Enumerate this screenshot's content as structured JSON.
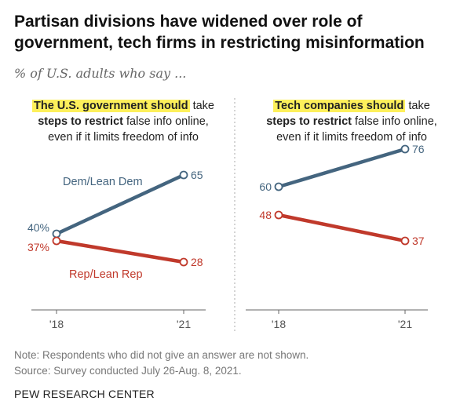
{
  "title": "Partisan divisions have widened over role of government, tech firms in restricting misinformation",
  "subtitle": "% of U.S. adults who say ...",
  "colors": {
    "dem": "#44657f",
    "rep": "#c0392b",
    "highlight": "#fdf05b",
    "axis": "#666666",
    "divider": "#aaaaaa"
  },
  "chart_data": [
    {
      "type": "line",
      "heading": {
        "highlight": "The U.S. government should",
        "rest1": " take",
        "bold2": "steps to restrict",
        "rest2": " false info online,",
        "line3": "even if it limits freedom of info"
      },
      "x": [
        "'18",
        "'21"
      ],
      "series": [
        {
          "name": "Dem/Lean Dem",
          "key": "dem",
          "values": [
            40,
            65
          ],
          "labels": [
            "40%",
            "65"
          ]
        },
        {
          "name": "Rep/Lean Rep",
          "key": "rep",
          "values": [
            37,
            28
          ],
          "labels": [
            "37%",
            "28"
          ]
        }
      ],
      "ylim": [
        0,
        100
      ]
    },
    {
      "type": "line",
      "heading": {
        "highlight": "Tech companies should",
        "rest1": " take",
        "bold2": "steps to restrict",
        "rest2": " false info online,",
        "line3": "even if it limits freedom of info"
      },
      "x": [
        "'18",
        "'21"
      ],
      "series": [
        {
          "name": "",
          "key": "dem",
          "values": [
            60,
            76
          ],
          "labels": [
            "60",
            "76"
          ]
        },
        {
          "name": "",
          "key": "rep",
          "values": [
            48,
            37
          ],
          "labels": [
            "48",
            "37"
          ]
        }
      ],
      "ylim": [
        0,
        100
      ]
    }
  ],
  "note": "Note: Respondents who did not give an answer are not shown.",
  "source": "Source: Survey conducted July 26-Aug. 8, 2021.",
  "brand": "PEW RESEARCH CENTER"
}
